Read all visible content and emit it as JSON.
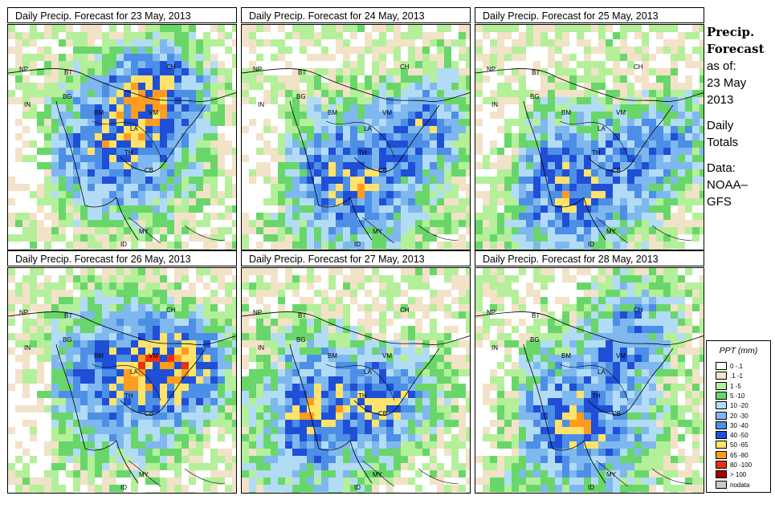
{
  "panels": [
    {
      "title": "Daily Precip. Forecast for  23 May, 2013",
      "seed": 11
    },
    {
      "title": "Daily Precip. Forecast for  24 May, 2013",
      "seed": 23
    },
    {
      "title": "Daily Precip. Forecast for  25 May, 2013",
      "seed": 37
    },
    {
      "title": "Daily Precip. Forecast for  26 May, 2013",
      "seed": 41
    },
    {
      "title": "Daily Precip. Forecast for  27 May, 2013",
      "seed": 53
    },
    {
      "title": "Daily Precip. Forecast for  28 May, 2013",
      "seed": 67
    }
  ],
  "country_labels": [
    "NP",
    "BT",
    "BG",
    "IN",
    "CH",
    "BM",
    "VM",
    "LA",
    "TH",
    "CB",
    "MY",
    "ID"
  ],
  "sidebar": {
    "heading_line1": "Precip.",
    "heading_line2": "Forecast",
    "as_of_label": "as of:",
    "date_line1": "23 May",
    "date_line2": "2013",
    "totals_line1": "Daily",
    "totals_line2": "Totals",
    "source_line1": "Data:",
    "source_line2": "NOAA–",
    "source_line3": "GFS"
  },
  "legend": {
    "title": "PPT (mm)",
    "items": [
      {
        "label": "0 -.1",
        "color": "#ffffff"
      },
      {
        "label": ".1 -1",
        "color": "#f2e2c8"
      },
      {
        "label": "1 -5",
        "color": "#b4ef9a"
      },
      {
        "label": "5 -10",
        "color": "#69d66a"
      },
      {
        "label": "10 -20",
        "color": "#b2dcf6"
      },
      {
        "label": "20 -30",
        "color": "#7fb8ef"
      },
      {
        "label": "30 -40",
        "color": "#4d8fe6"
      },
      {
        "label": "40 -50",
        "color": "#1f4fd6"
      },
      {
        "label": "50 -65",
        "color": "#ffe36a"
      },
      {
        "label": "65 -80",
        "color": "#ff9c1f"
      },
      {
        "label": "80 -100",
        "color": "#e9310e"
      },
      {
        "label": "> 100",
        "color": "#a30000"
      },
      {
        "label": "nodata",
        "color": "#c9c9c9"
      }
    ]
  }
}
